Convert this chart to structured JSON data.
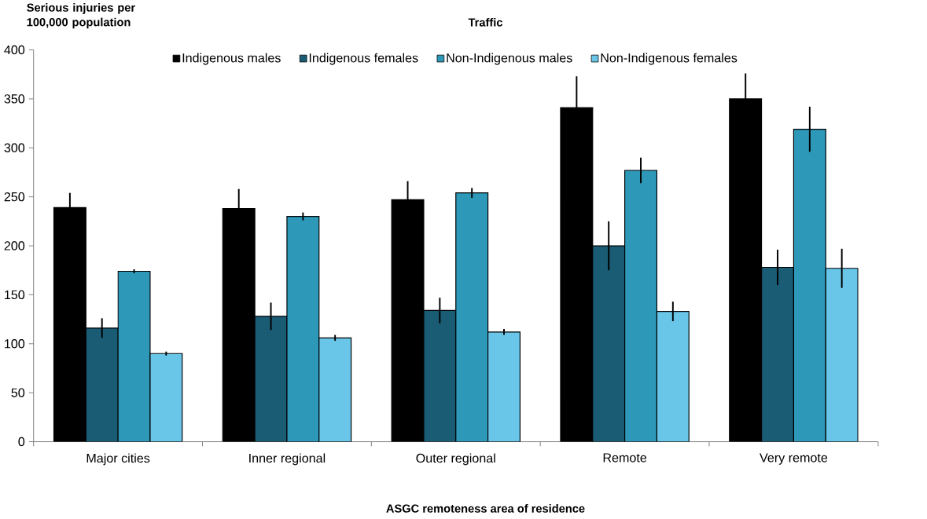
{
  "chart_data": {
    "type": "bar",
    "title": "Traffic",
    "ylabel": "Serious injuries per 100,000 population",
    "xlabel": "ASGC remoteness area of residence",
    "categories": [
      "Major cities",
      "Inner regional",
      "Outer regional",
      "Remote",
      "Very remote"
    ],
    "series": [
      {
        "name": "Indigenous males",
        "color": "#000000",
        "values": [
          239,
          238,
          247,
          341,
          350
        ],
        "errors": [
          15,
          20,
          19,
          32,
          26
        ]
      },
      {
        "name": "Indigenous females",
        "color": "#1a5c74",
        "values": [
          116,
          128,
          134,
          200,
          178
        ],
        "errors": [
          10,
          14,
          13,
          25,
          18
        ]
      },
      {
        "name": "Non-Indigenous males",
        "color": "#2e98b9",
        "values": [
          174,
          230,
          254,
          277,
          319
        ],
        "errors": [
          2,
          4,
          5,
          13,
          23
        ]
      },
      {
        "name": "Non-Indigenous females",
        "color": "#69c6e8",
        "values": [
          90,
          106,
          112,
          133,
          177
        ],
        "errors": [
          2,
          3,
          3,
          10,
          20
        ]
      }
    ],
    "ylim": [
      0,
      400
    ],
    "yticks": [
      0,
      50,
      100,
      150,
      200,
      250,
      300,
      350,
      400
    ],
    "grid": false,
    "legend": "top"
  }
}
